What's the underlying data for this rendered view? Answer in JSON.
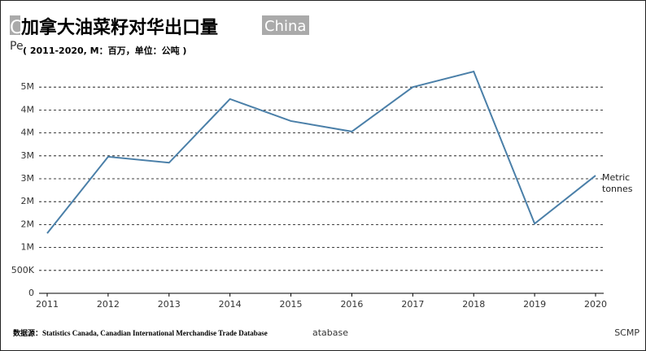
{
  "chart_data": {
    "type": "line",
    "title": "加拿大油菜籽对华出口量",
    "title_overlay_left": "C",
    "title_overlay_right": "China",
    "subtitle_overlay": "Pe",
    "subtitle": "( 2011-2020, M：百万，单位：公吨 )",
    "annotation_lines": [
      "Metric",
      "tonnes"
    ],
    "source": "数据源：Statistics Canada, Canadian International Merchandise Trade Database",
    "source_overlay": "atabase",
    "credit": "SCMP",
    "x": [
      2011,
      2012,
      2013,
      2014,
      2015,
      2016,
      2017,
      2018,
      2019,
      2020
    ],
    "xlim": [
      2011,
      2020
    ],
    "xticks": [
      2011,
      2012,
      2013,
      2014,
      2015,
      2016,
      2017,
      2018,
      2019,
      2020
    ],
    "series": [
      {
        "color": "#4a7fa8",
        "values": [
          1310000,
          2980000,
          2850000,
          4240000,
          3760000,
          3530000,
          4500000,
          4840000,
          1520000,
          2570000
        ]
      }
    ],
    "ylim": [
      0,
      5000000
    ],
    "yticks": [
      0,
      {
        "value": 500000,
        "label": "500K"
      },
      {
        "value": 1000000,
        "label": "1M"
      },
      {
        "value": 1500000,
        "label": "2M"
      },
      {
        "value": 2000000,
        "label": "2M"
      },
      {
        "value": 2500000,
        "label": "3M"
      },
      {
        "value": 3000000,
        "label": "3M"
      },
      {
        "value": 3500000,
        "label": "4M"
      },
      {
        "value": 4000000,
        "label": "4M"
      },
      {
        "value": 4500000,
        "label": "5M"
      }
    ],
    "grid": true
  }
}
